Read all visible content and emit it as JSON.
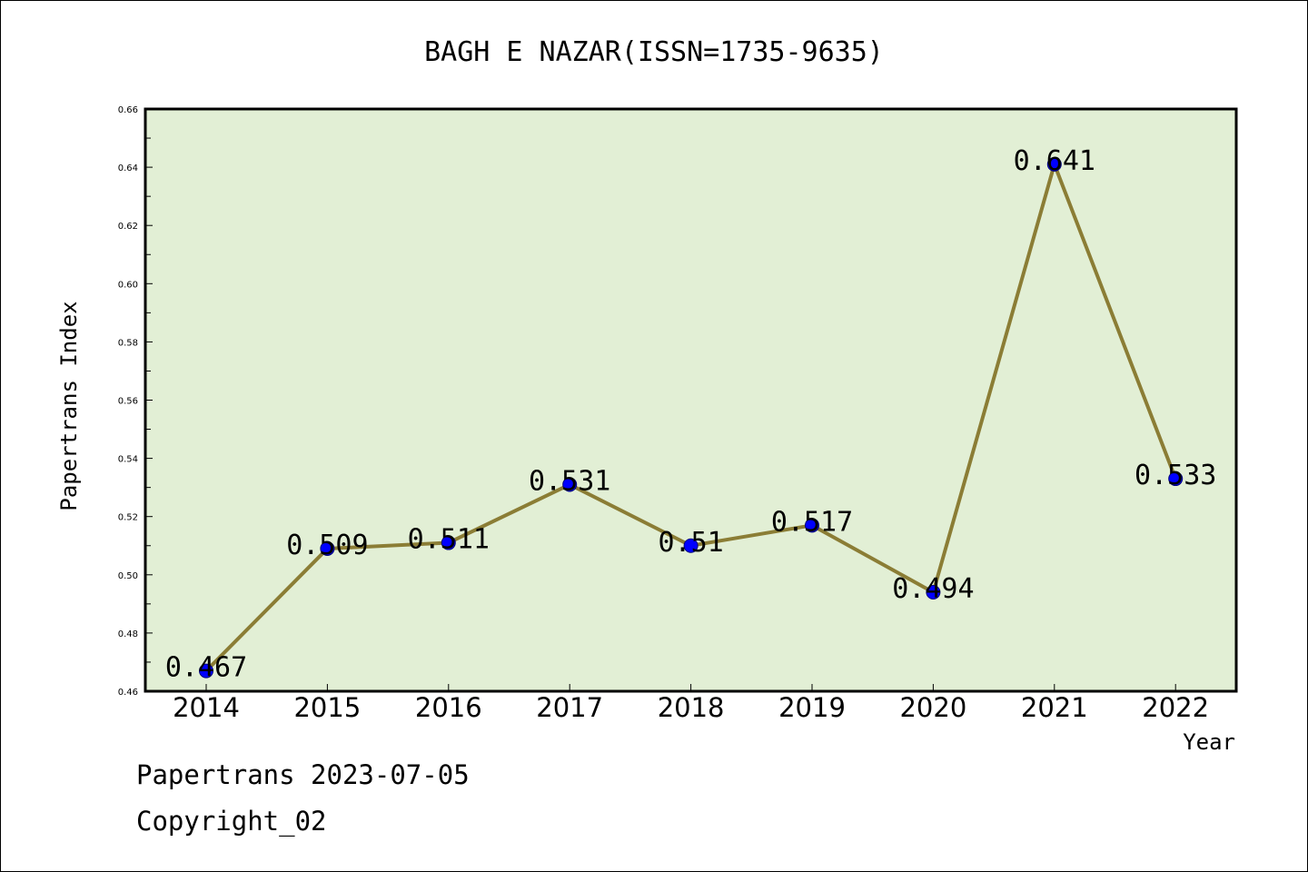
{
  "chart_data": {
    "type": "line",
    "title": "BAGH E NAZAR(ISSN=1735-9635)",
    "xlabel": "Year",
    "ylabel": "Papertrans Index",
    "x": [
      "2014",
      "2015",
      "2016",
      "2017",
      "2018",
      "2019",
      "2020",
      "2021",
      "2022"
    ],
    "series": [
      {
        "values": [
          0.467,
          0.509,
          0.511,
          0.531,
          0.51,
          0.517,
          0.494,
          0.641,
          0.533
        ],
        "data_labels": [
          "0.467",
          "0.509",
          "0.511",
          "0.531",
          "0.51",
          "0.517",
          "0.494",
          "0.641",
          "0.533"
        ]
      }
    ],
    "ylim": [
      0.46,
      0.66
    ],
    "y_ticks": [
      "0.46",
      "0.48",
      "0.50",
      "0.52",
      "0.54",
      "0.56",
      "0.58",
      "0.60",
      "0.62",
      "0.64",
      "0.66"
    ],
    "grid": false,
    "legend": "none",
    "colors": {
      "plot_background": "#e2efd5",
      "line": "#8b7d35",
      "marker": "#0000ff"
    }
  },
  "footer": {
    "source": "Papertrans 2023-07-05",
    "copyright": "Copyright_02"
  }
}
